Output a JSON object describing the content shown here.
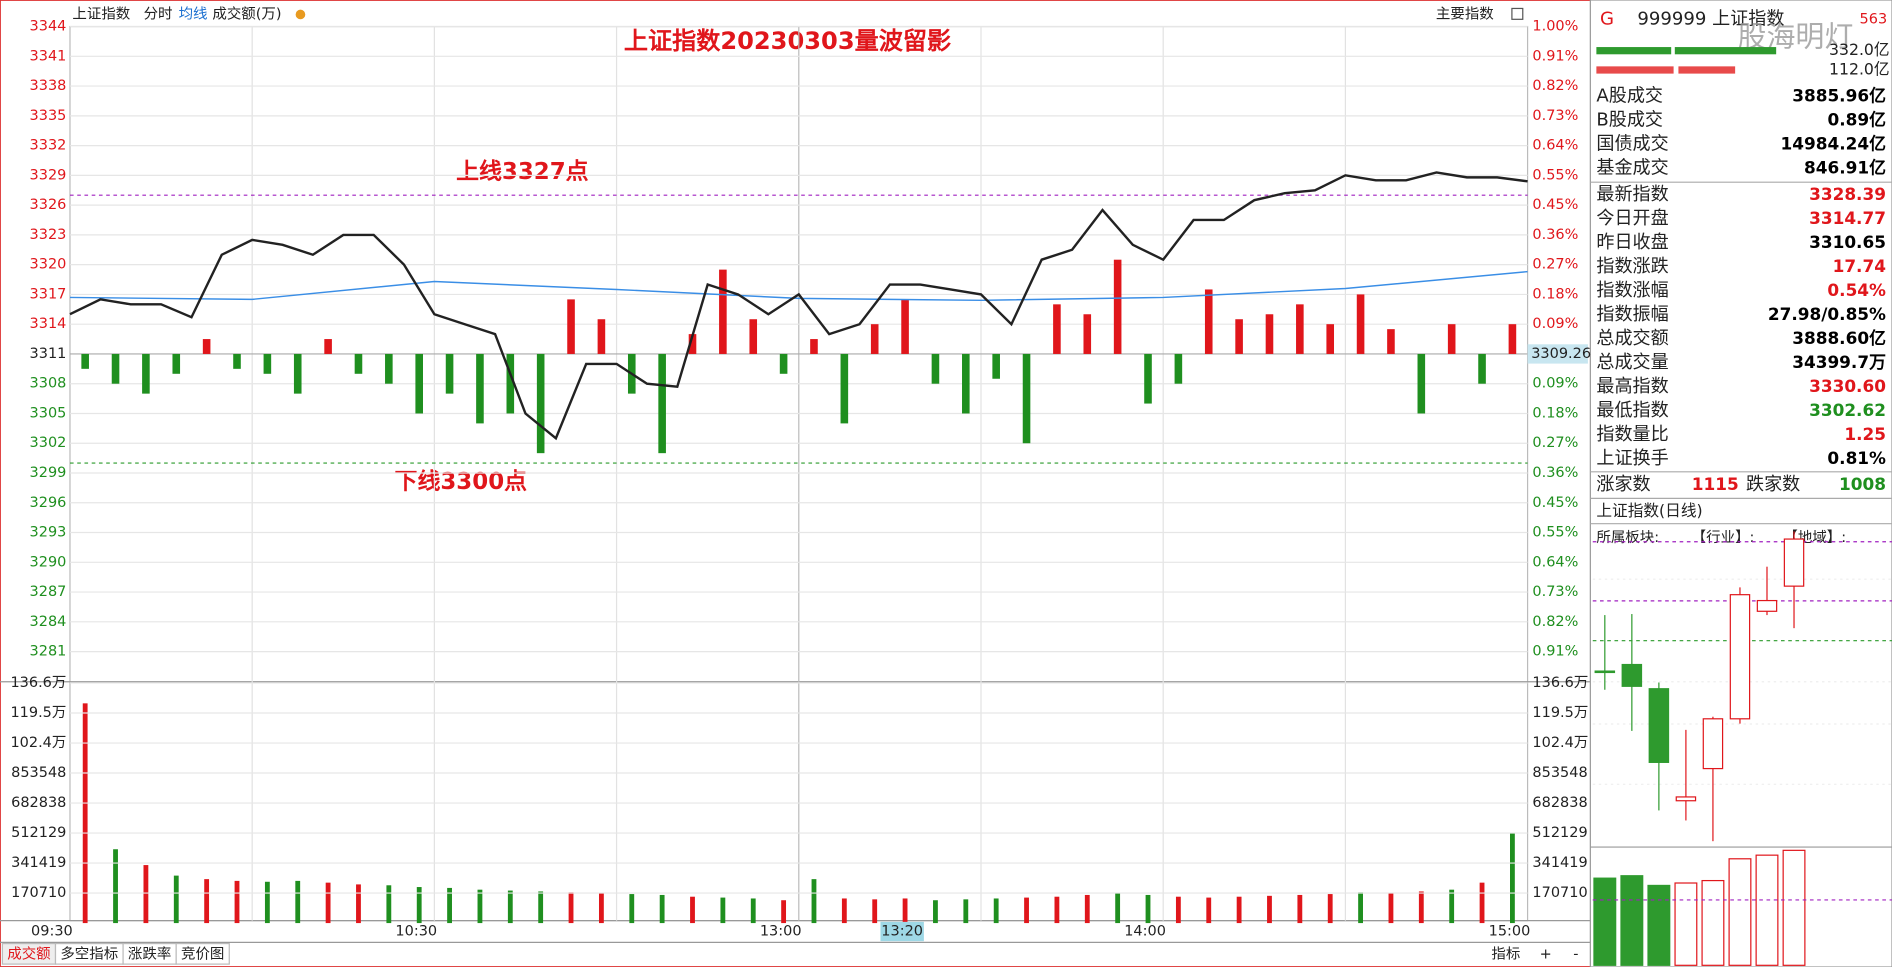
{
  "toolbar": {
    "name": "上证指数",
    "items": [
      "分时",
      "均线",
      "成交额(万)"
    ],
    "right": "主要指数"
  },
  "intraday": {
    "title": "上证指数20230303量波留影",
    "upper_line": {
      "label": "上线3327点",
      "value": 3327,
      "color": "#a020c0"
    },
    "lower_line": {
      "label": "下线3300点",
      "value": 3300,
      "color": "#2a9a2a"
    },
    "ylim": [
      3281,
      3344
    ],
    "yticks": [
      3344,
      3341,
      3338,
      3335,
      3332,
      3329,
      3326,
      3323,
      3320,
      3317,
      3314,
      3311,
      3308,
      3305,
      3302,
      3299,
      3296,
      3293,
      3290,
      3287,
      3284,
      3281
    ],
    "pct_ticks_up": [
      {
        "value": 1.0,
        "label": "1.00%"
      },
      {
        "value": 0.91,
        "label": "0.91%"
      },
      {
        "value": 0.82,
        "label": "0.82%"
      },
      {
        "value": 0.73,
        "label": "0.73%"
      },
      {
        "value": 0.64,
        "label": "0.64%"
      },
      {
        "value": 0.55,
        "label": "0.55%"
      },
      {
        "value": 0.45,
        "label": "0.45%"
      },
      {
        "value": 0.36,
        "label": "0.36%"
      },
      {
        "value": 0.27,
        "label": "0.27%"
      },
      {
        "value": 0.18,
        "label": "0.18%"
      },
      {
        "value": 0.09,
        "label": "0.09%"
      }
    ],
    "cursor_value": 3309.26,
    "pct_ticks_down": [
      {
        "value": 0.09,
        "label": "0.09%"
      },
      {
        "value": 0.18,
        "label": "0.18%"
      },
      {
        "value": 0.27,
        "label": "0.27%"
      },
      {
        "value": 0.36,
        "label": "0.36%"
      },
      {
        "value": 0.45,
        "label": "0.45%"
      },
      {
        "value": 0.55,
        "label": "0.55%"
      },
      {
        "value": 0.64,
        "label": "0.64%"
      },
      {
        "value": 0.73,
        "label": "0.73%"
      },
      {
        "value": 0.82,
        "label": "0.82%"
      },
      {
        "value": 0.91,
        "label": "0.91%"
      }
    ],
    "up_color": "#e0161b",
    "down_color": "#1f8f1f",
    "price": {
      "color": "#222222",
      "times": [
        "09:30",
        "09:35",
        "09:40",
        "09:45",
        "09:50",
        "09:55",
        "10:00",
        "10:05",
        "10:10",
        "10:15",
        "10:20",
        "10:25",
        "10:30",
        "10:35",
        "10:40",
        "10:45",
        "10:50",
        "10:55",
        "11:00",
        "11:05",
        "11:10",
        "11:15",
        "11:20",
        "11:25",
        "11:30",
        "13:05",
        "13:10",
        "13:15",
        "13:20",
        "13:25",
        "13:30",
        "13:35",
        "13:40",
        "13:45",
        "13:50",
        "13:55",
        "14:00",
        "14:05",
        "14:10",
        "14:15",
        "14:20",
        "14:25",
        "14:30",
        "14:35",
        "14:40",
        "14:45",
        "14:50",
        "14:55",
        "15:00"
      ],
      "values": [
        3315.0,
        3316.5,
        3316.0,
        3316.0,
        3314.7,
        3321.0,
        3322.5,
        3322.0,
        3321.0,
        3323.0,
        3323.0,
        3320.0,
        3315.0,
        3314.0,
        3313.0,
        3305.0,
        3302.5,
        3310.0,
        3310.0,
        3308.0,
        3307.7,
        3318.0,
        3317.0,
        3315.0,
        3317.0,
        3313.0,
        3314.0,
        3318.0,
        3318.0,
        3317.5,
        3317.0,
        3314.0,
        3320.5,
        3321.5,
        3325.5,
        3322.0,
        3320.5,
        3324.5,
        3324.5,
        3326.5,
        3327.2,
        3327.5,
        3329.0,
        3328.5,
        3328.5,
        3329.3,
        3328.8,
        3328.8,
        3328.4
      ]
    },
    "average": {
      "color": "#3a8ee6",
      "times": [
        "09:30",
        "10:00",
        "10:30",
        "11:00",
        "11:30",
        "13:30",
        "14:00",
        "14:30",
        "15:00"
      ],
      "values": [
        3316.7,
        3316.5,
        3318.3,
        3317.5,
        3316.6,
        3316.4,
        3316.7,
        3317.6,
        3319.3
      ]
    },
    "bars": {
      "base": 3311,
      "times": [
        "09:35",
        "09:40",
        "09:45",
        "09:50",
        "09:55",
        "10:00",
        "10:05",
        "10:10",
        "10:15",
        "10:20",
        "10:25",
        "10:30",
        "10:35",
        "10:40",
        "10:45",
        "10:50",
        "10:55",
        "11:00",
        "11:05",
        "11:10",
        "11:15",
        "11:20",
        "11:25",
        "11:30",
        "13:05",
        "13:10",
        "13:15",
        "13:20",
        "13:25",
        "13:30",
        "13:35",
        "13:40",
        "13:45",
        "13:50",
        "13:55",
        "14:00",
        "14:05",
        "14:10",
        "14:15",
        "14:20",
        "14:25",
        "14:30",
        "14:35",
        "14:40",
        "14:45",
        "14:50",
        "14:55",
        "15:00"
      ],
      "momentum": [
        -1.5,
        -3,
        -4,
        -2,
        1.5,
        -1.5,
        -2,
        -4,
        1.5,
        -2,
        -3,
        -6,
        -4,
        -7,
        -6,
        -10,
        5.5,
        3.5,
        -4,
        -10,
        2,
        8.5,
        3.5,
        -2,
        1.5,
        -7,
        3,
        5.5,
        -3,
        -6,
        -2.5,
        -9,
        5,
        4,
        9.5,
        -5,
        -3,
        6.5,
        3.5,
        4,
        5,
        3,
        6,
        2.5,
        -6,
        3,
        -3,
        3
      ],
      "volume": [
        1250000,
        420000,
        330000,
        270000,
        250000,
        240000,
        235000,
        240000,
        230000,
        220000,
        215000,
        205000,
        200000,
        190000,
        185000,
        180000,
        175000,
        170000,
        165000,
        160000,
        150000,
        145000,
        140000,
        130000,
        250000,
        140000,
        135000,
        140000,
        130000,
        135000,
        140000,
        145000,
        150000,
        160000,
        170000,
        160000,
        150000,
        145000,
        150000,
        155000,
        160000,
        165000,
        175000,
        170000,
        180000,
        190000,
        230000,
        514000
      ]
    },
    "vol_ylim": [
      0,
      1366000
    ],
    "vol_ticks": [
      {
        "value": 1366000,
        "label": "136.6万"
      },
      {
        "value": 1195000,
        "label": "119.5万"
      },
      {
        "value": 1024000,
        "label": "102.4万"
      },
      853548,
      682838,
      512129,
      341419,
      170710
    ],
    "time_labels": [
      "09:30",
      "10:30",
      "13:00",
      "14:00",
      "15:00"
    ],
    "cursor_time": "13:20"
  },
  "bottom_bar": {
    "tabs": [
      "成交额",
      "多空指标",
      "涨跌率",
      "竞价图"
    ],
    "right": [
      "指标",
      "+",
      "-"
    ]
  },
  "side_panel": {
    "prefix": "G",
    "code": "999999 上证指数",
    "watermark": "股海明灯",
    "badge": "563",
    "amounts": [
      "332.0亿",
      "112.0亿"
    ],
    "rows": [
      {
        "label": "A股成交",
        "value": "3885.96亿",
        "color": "#000"
      },
      {
        "label": "B股成交",
        "value": "0.89亿",
        "color": "#000"
      },
      {
        "label": "国债成交",
        "value": "14984.24亿",
        "color": "#000"
      },
      {
        "label": "基金成交",
        "value": "846.91亿",
        "color": "#000"
      },
      {
        "label": "最新指数",
        "value": "3328.39",
        "color": "#e0161b"
      },
      {
        "label": "今日开盘",
        "value": "3314.77",
        "color": "#e0161b"
      },
      {
        "label": "昨日收盘",
        "value": "3310.65",
        "color": "#000"
      },
      {
        "label": "指数涨跌",
        "value": "17.74",
        "color": "#e0161b"
      },
      {
        "label": "指数涨幅",
        "value": "0.54%",
        "color": "#e0161b"
      },
      {
        "label": "指数振幅",
        "value": "27.98/0.85%",
        "color": "#000"
      },
      {
        "label": "总成交额",
        "value": "3888.60亿",
        "color": "#000"
      },
      {
        "label": "总成交量",
        "value": "34399.7万",
        "color": "#000"
      },
      {
        "label": "最高指数",
        "value": "3330.60",
        "color": "#e0161b"
      },
      {
        "label": "最低指数",
        "value": "3302.62",
        "color": "#1f8f1f"
      },
      {
        "label": "指数量比",
        "value": "1.25",
        "color": "#e0161b"
      },
      {
        "label": "上证换手",
        "value": "0.81%",
        "color": "#000"
      }
    ],
    "breadth": {
      "up_label": "涨家数",
      "up": "1115",
      "down_label": "跌家数",
      "down": "1008"
    },
    "daily_title": "上证指数(日线)",
    "sector": "所属板块:",
    "industry": "【行业】:",
    "region": "【地域】:"
  },
  "daily": {
    "ylim": [
      3240,
      3332
    ],
    "candles": [
      {
        "open": 3290.2,
        "close": 3289.8,
        "high": 3306.4,
        "low": 3284.8
      },
      {
        "open": 3292.1,
        "close": 3285.8,
        "high": 3306.7,
        "low": 3272.9
      },
      {
        "open": 3285.1,
        "close": 3263.8,
        "high": 3286.9,
        "low": 3249.9
      },
      {
        "open": 3252.7,
        "close": 3253.8,
        "high": 3273.2,
        "low": 3247.0
      },
      {
        "open": 3262.0,
        "close": 3276.4,
        "high": 3277.0,
        "low": 3241.0
      },
      {
        "open": 3276.4,
        "close": 3312.3,
        "high": 3314.4,
        "low": 3275.0
      },
      {
        "open": 3307.5,
        "close": 3310.6,
        "high": 3320.4,
        "low": 3306.4
      },
      {
        "open": 3314.77,
        "close": 3328.39,
        "high": 3330.6,
        "low": 3302.62
      }
    ],
    "levels": [
      {
        "value": 3327.6,
        "color": "#a020c0"
      },
      {
        "value": 3310.5,
        "color": "#a020c0"
      },
      {
        "value": 3299.0,
        "color": "#2a9a2a"
      }
    ],
    "vol_ylim": [
      0,
      4000
    ],
    "volume": [
      2948,
      3030,
      2702,
      2784,
      2866,
      3603,
      3726,
      3889
    ],
    "volume_ma": 2211
  }
}
